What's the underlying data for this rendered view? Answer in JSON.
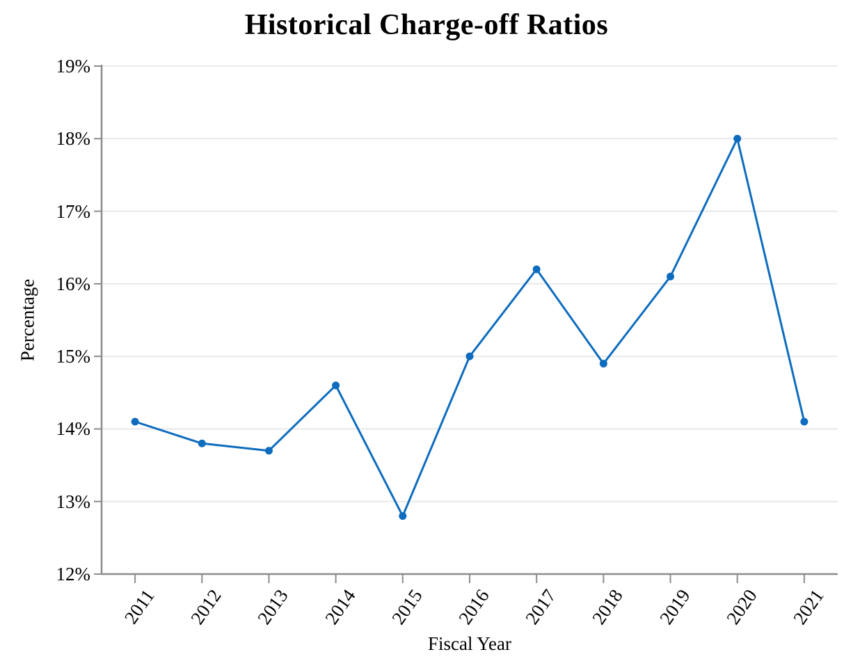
{
  "chart_data": {
    "type": "line",
    "title": "Historical Charge-off Ratios",
    "xlabel": "Fiscal Year",
    "ylabel": "Percentage",
    "categories": [
      "2011",
      "2012",
      "2013",
      "2014",
      "2015",
      "2016",
      "2017",
      "2018",
      "2019",
      "2020",
      "2021"
    ],
    "values": [
      14.1,
      13.8,
      13.7,
      14.6,
      12.8,
      15.0,
      16.2,
      14.9,
      16.1,
      18.0,
      14.1
    ],
    "ylim": [
      12,
      19
    ],
    "y_tick_labels": [
      "12%",
      "13%",
      "14%",
      "15%",
      "16%",
      "17%",
      "18%",
      "19%"
    ],
    "grid": "horizontal",
    "legend": "none",
    "marker": "circle",
    "colors": {
      "line": "#0d6cbe",
      "marker": "#0d6cbe",
      "axis": "#8c8c8c",
      "gridline": "#e9e9e9",
      "text": "#000000",
      "background": "#ffffff"
    }
  }
}
